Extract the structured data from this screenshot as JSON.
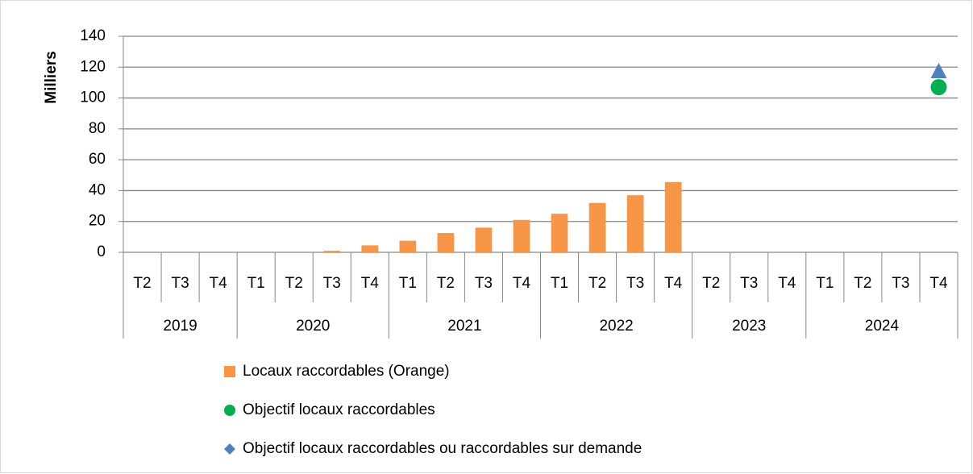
{
  "chart_data": {
    "type": "bar",
    "y_label": "Milliers",
    "year_groups": [
      {
        "name": "2019",
        "quarters": [
          "T2",
          "T3",
          "T4"
        ]
      },
      {
        "name": "2020",
        "quarters": [
          "T1",
          "T2",
          "T3",
          "T4"
        ]
      },
      {
        "name": "2021",
        "quarters": [
          "T1",
          "T2",
          "T3",
          "T4"
        ]
      },
      {
        "name": "2022",
        "quarters": [
          "T1",
          "T2",
          "T3",
          "T4"
        ]
      },
      {
        "name": "2023",
        "quarters": [
          "T2",
          "T3",
          "T4"
        ]
      },
      {
        "name": "2024",
        "quarters": [
          "T1",
          "T2",
          "T3",
          "T4"
        ]
      }
    ],
    "series": [
      {
        "name": "Locaux raccordables (Orange)",
        "color": "#f79646",
        "kind": "bar",
        "legend_marker": "square",
        "values": [
          null,
          null,
          null,
          null,
          null,
          1,
          4.5,
          7.5,
          12.5,
          16,
          21,
          25,
          32,
          37,
          45.5,
          null,
          null,
          null,
          null,
          null,
          null,
          null
        ]
      },
      {
        "name": "Objectif locaux raccordables",
        "color": "#00b050",
        "kind": "point",
        "marker": "circle",
        "legend_marker": "circle",
        "values": [
          null,
          null,
          null,
          null,
          null,
          null,
          null,
          null,
          null,
          null,
          null,
          null,
          null,
          null,
          null,
          null,
          null,
          null,
          null,
          null,
          null,
          107
        ]
      },
      {
        "name": "Objectif locaux raccordables ou raccordables sur demande",
        "color": "#4f81bd",
        "kind": "point",
        "marker": "triangle",
        "legend_marker": "diamond",
        "values": [
          null,
          null,
          null,
          null,
          null,
          null,
          null,
          null,
          null,
          null,
          null,
          null,
          null,
          null,
          null,
          null,
          null,
          null,
          null,
          null,
          null,
          117
        ]
      }
    ],
    "ylim": [
      0,
      140
    ],
    "yticks": [
      0,
      20,
      40,
      60,
      80,
      100,
      120,
      140
    ],
    "grid": true
  }
}
